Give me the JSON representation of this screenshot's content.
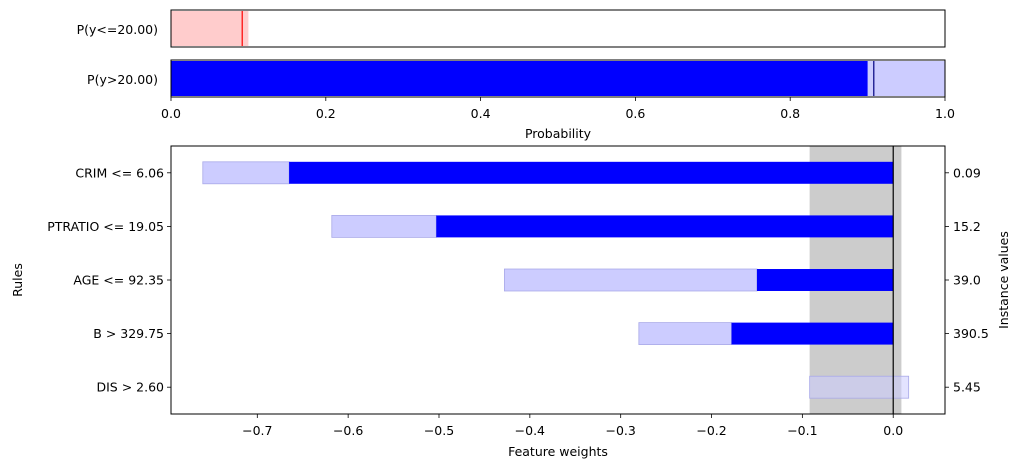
{
  "chart_data": [
    {
      "type": "bar",
      "orientation": "horizontal",
      "categories": [
        "P(y<=20.00)",
        "P(y>20.00)"
      ],
      "series": [
        {
          "values": [
            0.09,
            0.9
          ],
          "color": ""
        },
        {
          "values": [
            0.1,
            1.0
          ]
        }
      ],
      "markers": [
        0.092,
        0.908
      ],
      "xlabel": "Probability",
      "xlim": [
        0,
        1
      ],
      "xticks": [
        "0.0",
        "0.2",
        "0.4",
        "0.6",
        "0.8",
        "1.0"
      ],
      "xtick_values": [
        0,
        0.2,
        0.4,
        0.6,
        0.8,
        1.0
      ],
      "bar_colors": {
        "low_fill": "#ffcccc",
        "low_marker": "#ff0000",
        "high_fill": "#0000ff",
        "high_uncertainty": "#ccccff",
        "high_marker": "#000080"
      }
    },
    {
      "type": "bar",
      "orientation": "horizontal",
      "categories": [
        "CRIM <= 6.06",
        "PTRATIO <= 19.05",
        "AGE <= 92.35",
        "B > 329.75",
        "DIS > 2.60"
      ],
      "series": [
        {
          "values": [
            -0.665,
            -0.503,
            -0.15,
            -0.178,
            0.0
          ]
        },
        {
          "values": [
            -0.76,
            -0.618,
            -0.428,
            -0.28,
            0.017
          ]
        }
      ],
      "uncertainty_low": [
        -0.76,
        -0.618,
        -0.428,
        -0.28,
        -0.092
      ],
      "uncertainty_high": [
        -0.665,
        -0.503,
        -0.15,
        -0.178,
        0.017
      ],
      "instance_values": [
        "0.09",
        "15.2",
        "39.0",
        "390.5",
        "5.45"
      ],
      "xlabel": "Feature weights",
      "ylabel": "Rules",
      "y2label": "Instance values",
      "xlim": [
        -0.795,
        0.057
      ],
      "xticks": [
        "−0.7",
        "−0.6",
        "−0.5",
        "−0.4",
        "−0.3",
        "−0.2",
        "−0.1",
        "0.0"
      ],
      "xtick_values": [
        -0.7,
        -0.6,
        -0.5,
        -0.4,
        -0.3,
        -0.2,
        -0.1,
        0.0
      ],
      "band": [
        -0.092,
        0.009
      ],
      "colors": {
        "weight": "#0000ff",
        "uncertainty": "#ccccff",
        "band": "#cccccc"
      }
    }
  ]
}
